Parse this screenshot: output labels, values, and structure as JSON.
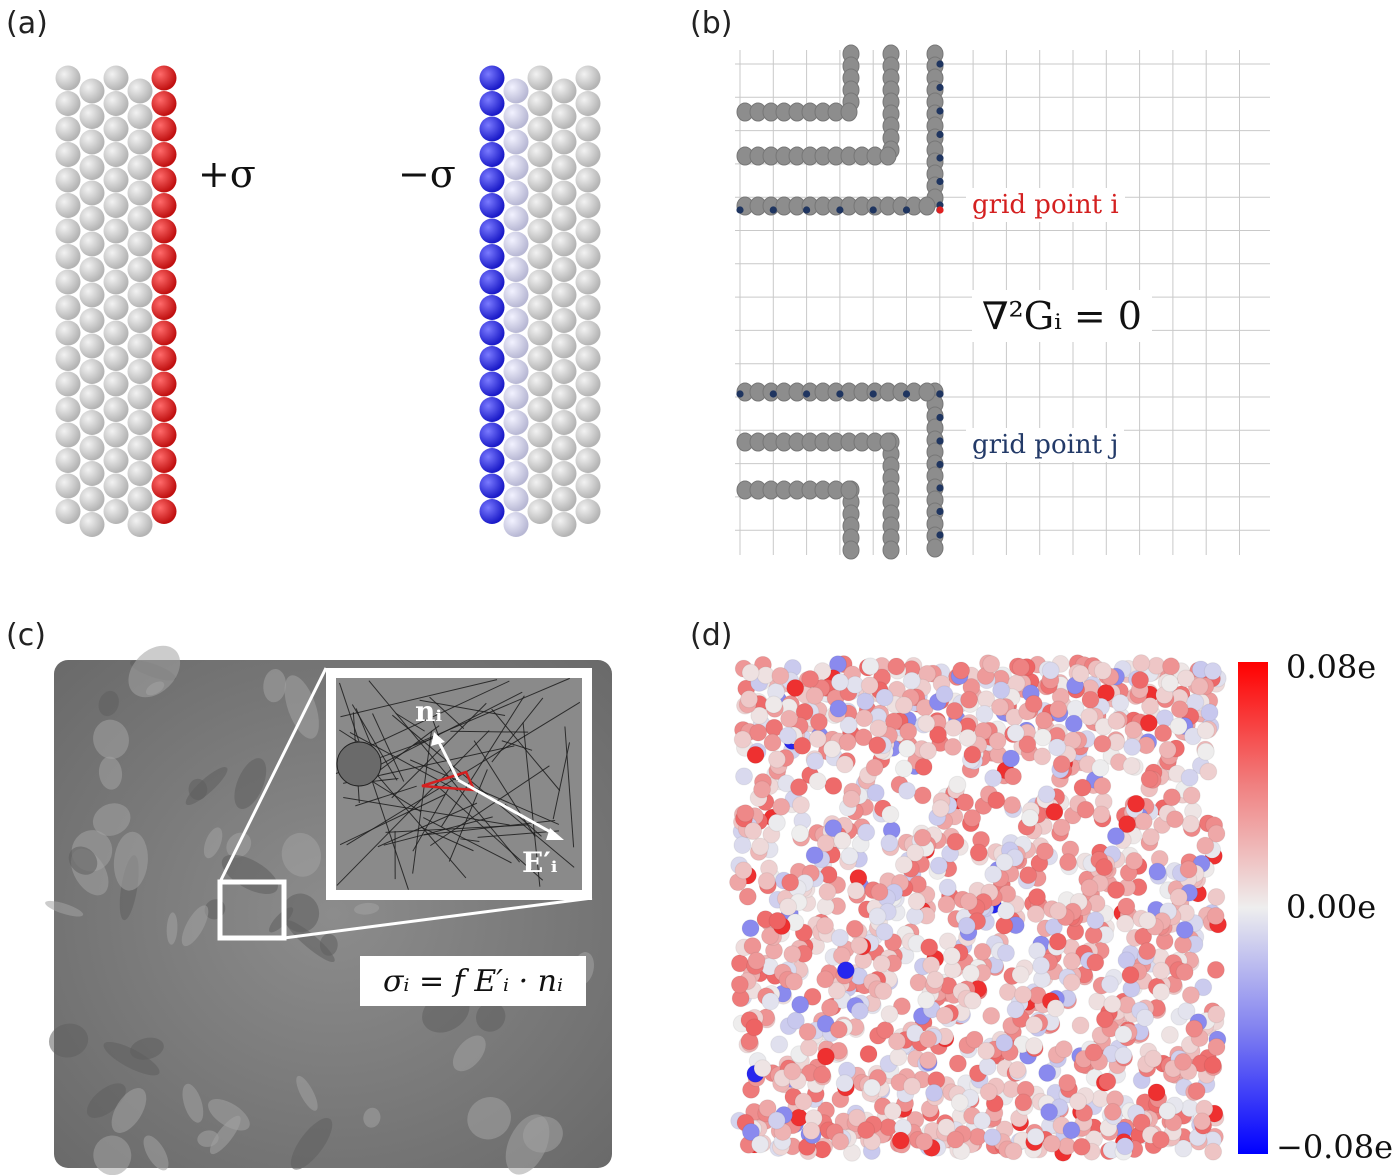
{
  "panels": {
    "a": {
      "label": "(a)",
      "plus_sigma": "+σ",
      "minus_sigma": "−σ"
    },
    "b": {
      "label": "(b)",
      "grid_point_i": "grid point i",
      "grid_point_j": "grid point j",
      "equation": "∇²Gᵢ = 0"
    },
    "c": {
      "label": "(c)",
      "normal_label": "nᵢ",
      "field_label": "E′ᵢ",
      "equation": "σᵢ = f E′ᵢ · nᵢ"
    },
    "d": {
      "label": "(d)",
      "colorbar": {
        "max": "0.08e",
        "mid": "0.00e",
        "min": "−0.08e"
      }
    }
  },
  "colors": {
    "positive": "#d42020",
    "negative": "#2b2bd8",
    "neutral_atom": "#c8c8c8",
    "grid_atom": "#8a8a8a",
    "grid_point": "#1f3560",
    "highlight_point": "#e02020",
    "surface": "#7a7a7a"
  }
}
